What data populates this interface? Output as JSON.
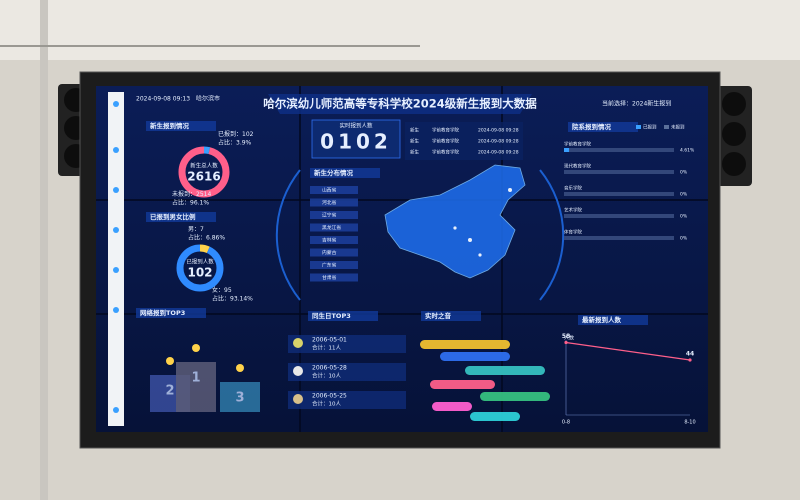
{
  "header": {
    "title": "哈尔滨幼儿师范高等专科学校2024级新生报到大数据",
    "datetime": "2024-09-08 09:13",
    "location": "哈尔滨市",
    "selection": "当前选择：2024新生报到"
  },
  "registration": {
    "title": "新生报到情况",
    "center_label": "新生总人数",
    "center_value": "2616",
    "segments": [
      {
        "label": "已报到：",
        "value": 102,
        "share": "占比：3.9%",
        "color": "#3aa0ff"
      },
      {
        "label": "未报到：",
        "value": 2514,
        "share": "占比：96.1%",
        "color": "#ff5f8a"
      }
    ]
  },
  "gender": {
    "title": "已报到男女比例",
    "center_label": "已报到人数",
    "center_value": "102",
    "segments": [
      {
        "label": "男：",
        "value": 7,
        "share": "占比：6.86%",
        "color": "#ffd24a"
      },
      {
        "label": "女：",
        "value": 95,
        "share": "占比：93.14%",
        "color": "#2f8bff"
      }
    ]
  },
  "online": {
    "title": "网络报到TOP3",
    "ranks": [
      "2",
      "1",
      "3"
    ]
  },
  "realtime": {
    "title": "实时报到人数",
    "count": "0102",
    "rows": [
      {
        "name": "新生",
        "dept": "学前教育学院",
        "time": "2024-09-08 09:28"
      },
      {
        "name": "新生",
        "dept": "学前教育学院",
        "time": "2024-09-08 09:28"
      },
      {
        "name": "新生",
        "dept": "学前教育学院",
        "time": "2024-09-08 09:28"
      }
    ]
  },
  "distribution": {
    "title": "新生分布情况",
    "provinces": [
      "山西省",
      "河北省",
      "辽宁省",
      "黑龙江省",
      "吉林省",
      "内蒙古",
      "广东省",
      "甘肃省"
    ]
  },
  "birthday": {
    "title": "同生日TOP3",
    "rows": [
      {
        "date": "2006-05-01",
        "total": "合计：11人"
      },
      {
        "date": "2006-05-28",
        "total": "合计：10人"
      },
      {
        "date": "2006-05-25",
        "total": "合计：10人"
      }
    ]
  },
  "voice": {
    "title": "实时之音"
  },
  "departments": {
    "title": "院系报到情况",
    "legend": [
      "已报到",
      "未报到"
    ],
    "rows": [
      {
        "name": "学前教育学院",
        "value": 4.61,
        "label": "4.61%"
      },
      {
        "name": "现代教育学院",
        "value": 0,
        "label": "0%"
      },
      {
        "name": "音乐学院",
        "value": 0,
        "label": "0%"
      },
      {
        "name": "艺术学院",
        "value": 0,
        "label": "0%"
      },
      {
        "name": "体育学院",
        "value": 0,
        "label": "0%"
      }
    ]
  },
  "chart_data": {
    "type": "line",
    "title": "最新报到人数",
    "ylabel": "人数",
    "categories": [
      "0-8",
      "8-10"
    ],
    "values": [
      58,
      44
    ],
    "ylim": [
      0,
      60
    ],
    "color": "#ff5f8a"
  }
}
